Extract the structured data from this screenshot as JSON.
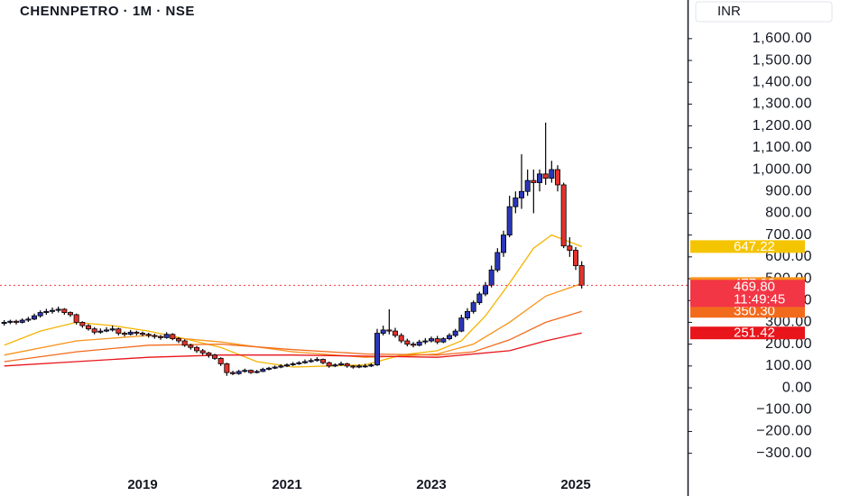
{
  "chart_data": {
    "type": "candlestick",
    "title": "CHENNPETRO · 1M · NSE",
    "currency": "INR",
    "countdown": "11:49:45",
    "last_close_label": "469.80",
    "up_color": "#2b37b8",
    "down_color": "#e5322d",
    "xlim": [
      -0.7,
      113.6
    ],
    "xticks": [
      {
        "value": 23,
        "label": "2019"
      },
      {
        "value": 47,
        "label": "2021"
      },
      {
        "value": 71,
        "label": "2023"
      },
      {
        "value": 95,
        "label": "2025"
      }
    ],
    "ylim": [
      -380,
      1777
    ],
    "yticks": [
      {
        "value": -300,
        "label": "−300.00"
      },
      {
        "value": -200,
        "label": "−200.00"
      },
      {
        "value": -100,
        "label": "−100.00"
      },
      {
        "value": 0,
        "label": "0.00"
      },
      {
        "value": 100,
        "label": "100.00"
      },
      {
        "value": 200,
        "label": "200.00"
      },
      {
        "value": 300,
        "label": "300.00"
      },
      {
        "value": 400,
        "label": "400.00"
      },
      {
        "value": 500,
        "label": "500.00"
      },
      {
        "value": 600,
        "label": "600.00"
      },
      {
        "value": 700,
        "label": "700.00"
      },
      {
        "value": 800,
        "label": "800.00"
      },
      {
        "value": 900,
        "label": "900.00"
      },
      {
        "value": 1000,
        "label": "1,000.00"
      },
      {
        "value": 1100,
        "label": "1,100.00"
      },
      {
        "value": 1200,
        "label": "1,200.00"
      },
      {
        "value": 1300,
        "label": "1,300.00"
      },
      {
        "value": 1400,
        "label": "1,400.00"
      },
      {
        "value": 1500,
        "label": "1,500.00"
      },
      {
        "value": 1600,
        "label": "1,600.00"
      }
    ],
    "open": [
      295,
      300,
      305,
      300,
      310,
      315,
      330,
      345,
      350,
      355,
      360,
      345,
      335,
      300,
      285,
      270,
      255,
      260,
      265,
      270,
      250,
      245,
      255,
      250,
      245,
      240,
      235,
      230,
      245,
      225,
      215,
      195,
      185,
      170,
      160,
      150,
      135,
      110,
      70,
      65,
      75,
      80,
      70,
      75,
      85,
      90,
      95,
      100,
      105,
      110,
      115,
      120,
      125,
      130,
      115,
      100,
      105,
      110,
      100,
      95,
      100,
      100,
      105,
      250,
      265,
      260,
      240,
      215,
      200,
      195,
      210,
      215,
      225,
      210,
      225,
      240,
      260,
      320,
      350,
      390,
      430,
      470,
      540,
      620,
      700,
      830,
      870,
      900,
      950,
      940,
      980,
      960,
      1000,
      930,
      650,
      630,
      560
    ],
    "high": [
      310,
      312,
      312,
      318,
      325,
      340,
      355,
      362,
      368,
      372,
      365,
      350,
      340,
      305,
      292,
      278,
      272,
      278,
      285,
      275,
      258,
      265,
      262,
      258,
      252,
      248,
      242,
      255,
      250,
      232,
      222,
      202,
      192,
      178,
      165,
      156,
      140,
      115,
      78,
      82,
      88,
      84,
      82,
      92,
      96,
      102,
      108,
      112,
      118,
      122,
      130,
      135,
      140,
      134,
      120,
      112,
      120,
      115,
      104,
      108,
      110,
      112,
      270,
      285,
      360,
      275,
      250,
      225,
      210,
      220,
      228,
      235,
      238,
      232,
      250,
      270,
      335,
      365,
      400,
      440,
      485,
      560,
      640,
      720,
      880,
      900,
      1070,
      1000,
      1000,
      1000,
      1215,
      1040,
      1020,
      940,
      690,
      645,
      580
    ],
    "low": [
      285,
      292,
      290,
      295,
      302,
      310,
      322,
      335,
      340,
      345,
      335,
      325,
      290,
      275,
      262,
      245,
      248,
      255,
      258,
      240,
      235,
      240,
      240,
      236,
      230,
      225,
      220,
      225,
      218,
      205,
      188,
      175,
      160,
      150,
      138,
      128,
      100,
      55,
      58,
      60,
      70,
      64,
      66,
      72,
      80,
      86,
      90,
      95,
      100,
      105,
      110,
      115,
      120,
      108,
      92,
      95,
      100,
      92,
      88,
      90,
      92,
      95,
      100,
      240,
      245,
      230,
      205,
      190,
      185,
      190,
      200,
      208,
      200,
      205,
      218,
      232,
      255,
      310,
      340,
      380,
      420,
      460,
      530,
      600,
      690,
      800,
      820,
      880,
      800,
      900,
      930,
      940,
      900,
      640,
      600,
      540,
      455
    ],
    "close": [
      300,
      305,
      300,
      310,
      315,
      330,
      345,
      350,
      355,
      360,
      345,
      335,
      300,
      285,
      270,
      255,
      260,
      265,
      270,
      250,
      245,
      255,
      250,
      245,
      240,
      235,
      230,
      245,
      225,
      215,
      195,
      185,
      170,
      160,
      150,
      135,
      110,
      70,
      65,
      75,
      80,
      70,
      75,
      85,
      90,
      95,
      100,
      105,
      110,
      115,
      120,
      125,
      130,
      115,
      100,
      105,
      110,
      100,
      95,
      100,
      100,
      105,
      250,
      265,
      260,
      240,
      215,
      200,
      195,
      210,
      215,
      225,
      210,
      225,
      240,
      260,
      320,
      350,
      390,
      430,
      470,
      540,
      620,
      700,
      830,
      870,
      900,
      950,
      940,
      980,
      960,
      1000,
      930,
      650,
      630,
      560,
      469.8
    ],
    "series": [
      {
        "color": "#f5b400",
        "x": [
          0,
          6,
          12,
          18,
          24,
          30,
          36,
          42,
          48,
          54,
          60,
          66,
          72,
          76,
          80,
          84,
          88,
          91,
          96
        ],
        "values": [
          195,
          260,
          300,
          285,
          260,
          225,
          185,
          120,
          95,
          100,
          105,
          150,
          170,
          215,
          330,
          480,
          640,
          700,
          647.22
        ]
      },
      {
        "color": "#f7931a",
        "x": [
          0,
          12,
          24,
          36,
          48,
          60,
          66,
          72,
          78,
          84,
          90,
          96
        ],
        "values": [
          150,
          215,
          240,
          210,
          165,
          140,
          145,
          155,
          200,
          300,
          420,
          477.92
        ]
      },
      {
        "color": "#f26b1d",
        "x": [
          0,
          12,
          24,
          36,
          48,
          60,
          72,
          78,
          84,
          90,
          96
        ],
        "values": [
          120,
          165,
          195,
          200,
          175,
          155,
          150,
          165,
          220,
          300,
          350.3
        ],
        "value_labels": [
          null,
          null,
          null,
          null,
          null,
          null,
          null,
          null,
          null,
          null,
          "350.30"
        ]
      },
      {
        "color": "#e8151b",
        "x": [
          0,
          12,
          24,
          36,
          48,
          60,
          72,
          84,
          90,
          96
        ],
        "values": [
          100,
          120,
          140,
          150,
          150,
          145,
          140,
          170,
          215,
          251.42
        ]
      }
    ]
  }
}
